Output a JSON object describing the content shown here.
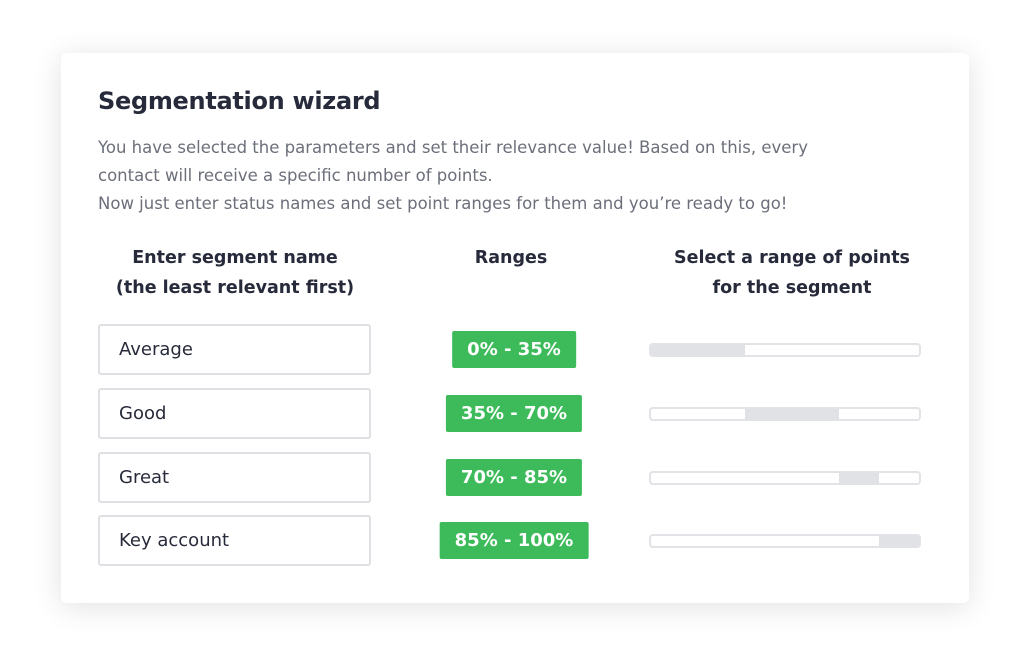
{
  "title": "Segmentation wizard",
  "description": [
    "You have selected the parameters and set their relevance value! Based on this, every",
    "contact will receive a specific number of points.",
    "Now just enter status names and set point ranges for them and you’re ready to go!"
  ],
  "headers": {
    "name": [
      "Enter segment name",
      "(the least relevant first)"
    ],
    "ranges": "Ranges",
    "select": [
      "Select a range of points",
      "for the segment"
    ]
  },
  "segments": [
    {
      "name": "Average",
      "range": "0% - 35%",
      "from": 0,
      "to": 35
    },
    {
      "name": "Good",
      "range": "35% - 70%",
      "from": 35,
      "to": 70
    },
    {
      "name": "Great",
      "range": "70% - 85%",
      "from": 70,
      "to": 85
    },
    {
      "name": "Key account",
      "range": "85% - 100%",
      "from": 85,
      "to": 100
    }
  ],
  "colors": {
    "accent": "#3dbb5a",
    "fill": "#e1e2e5"
  }
}
